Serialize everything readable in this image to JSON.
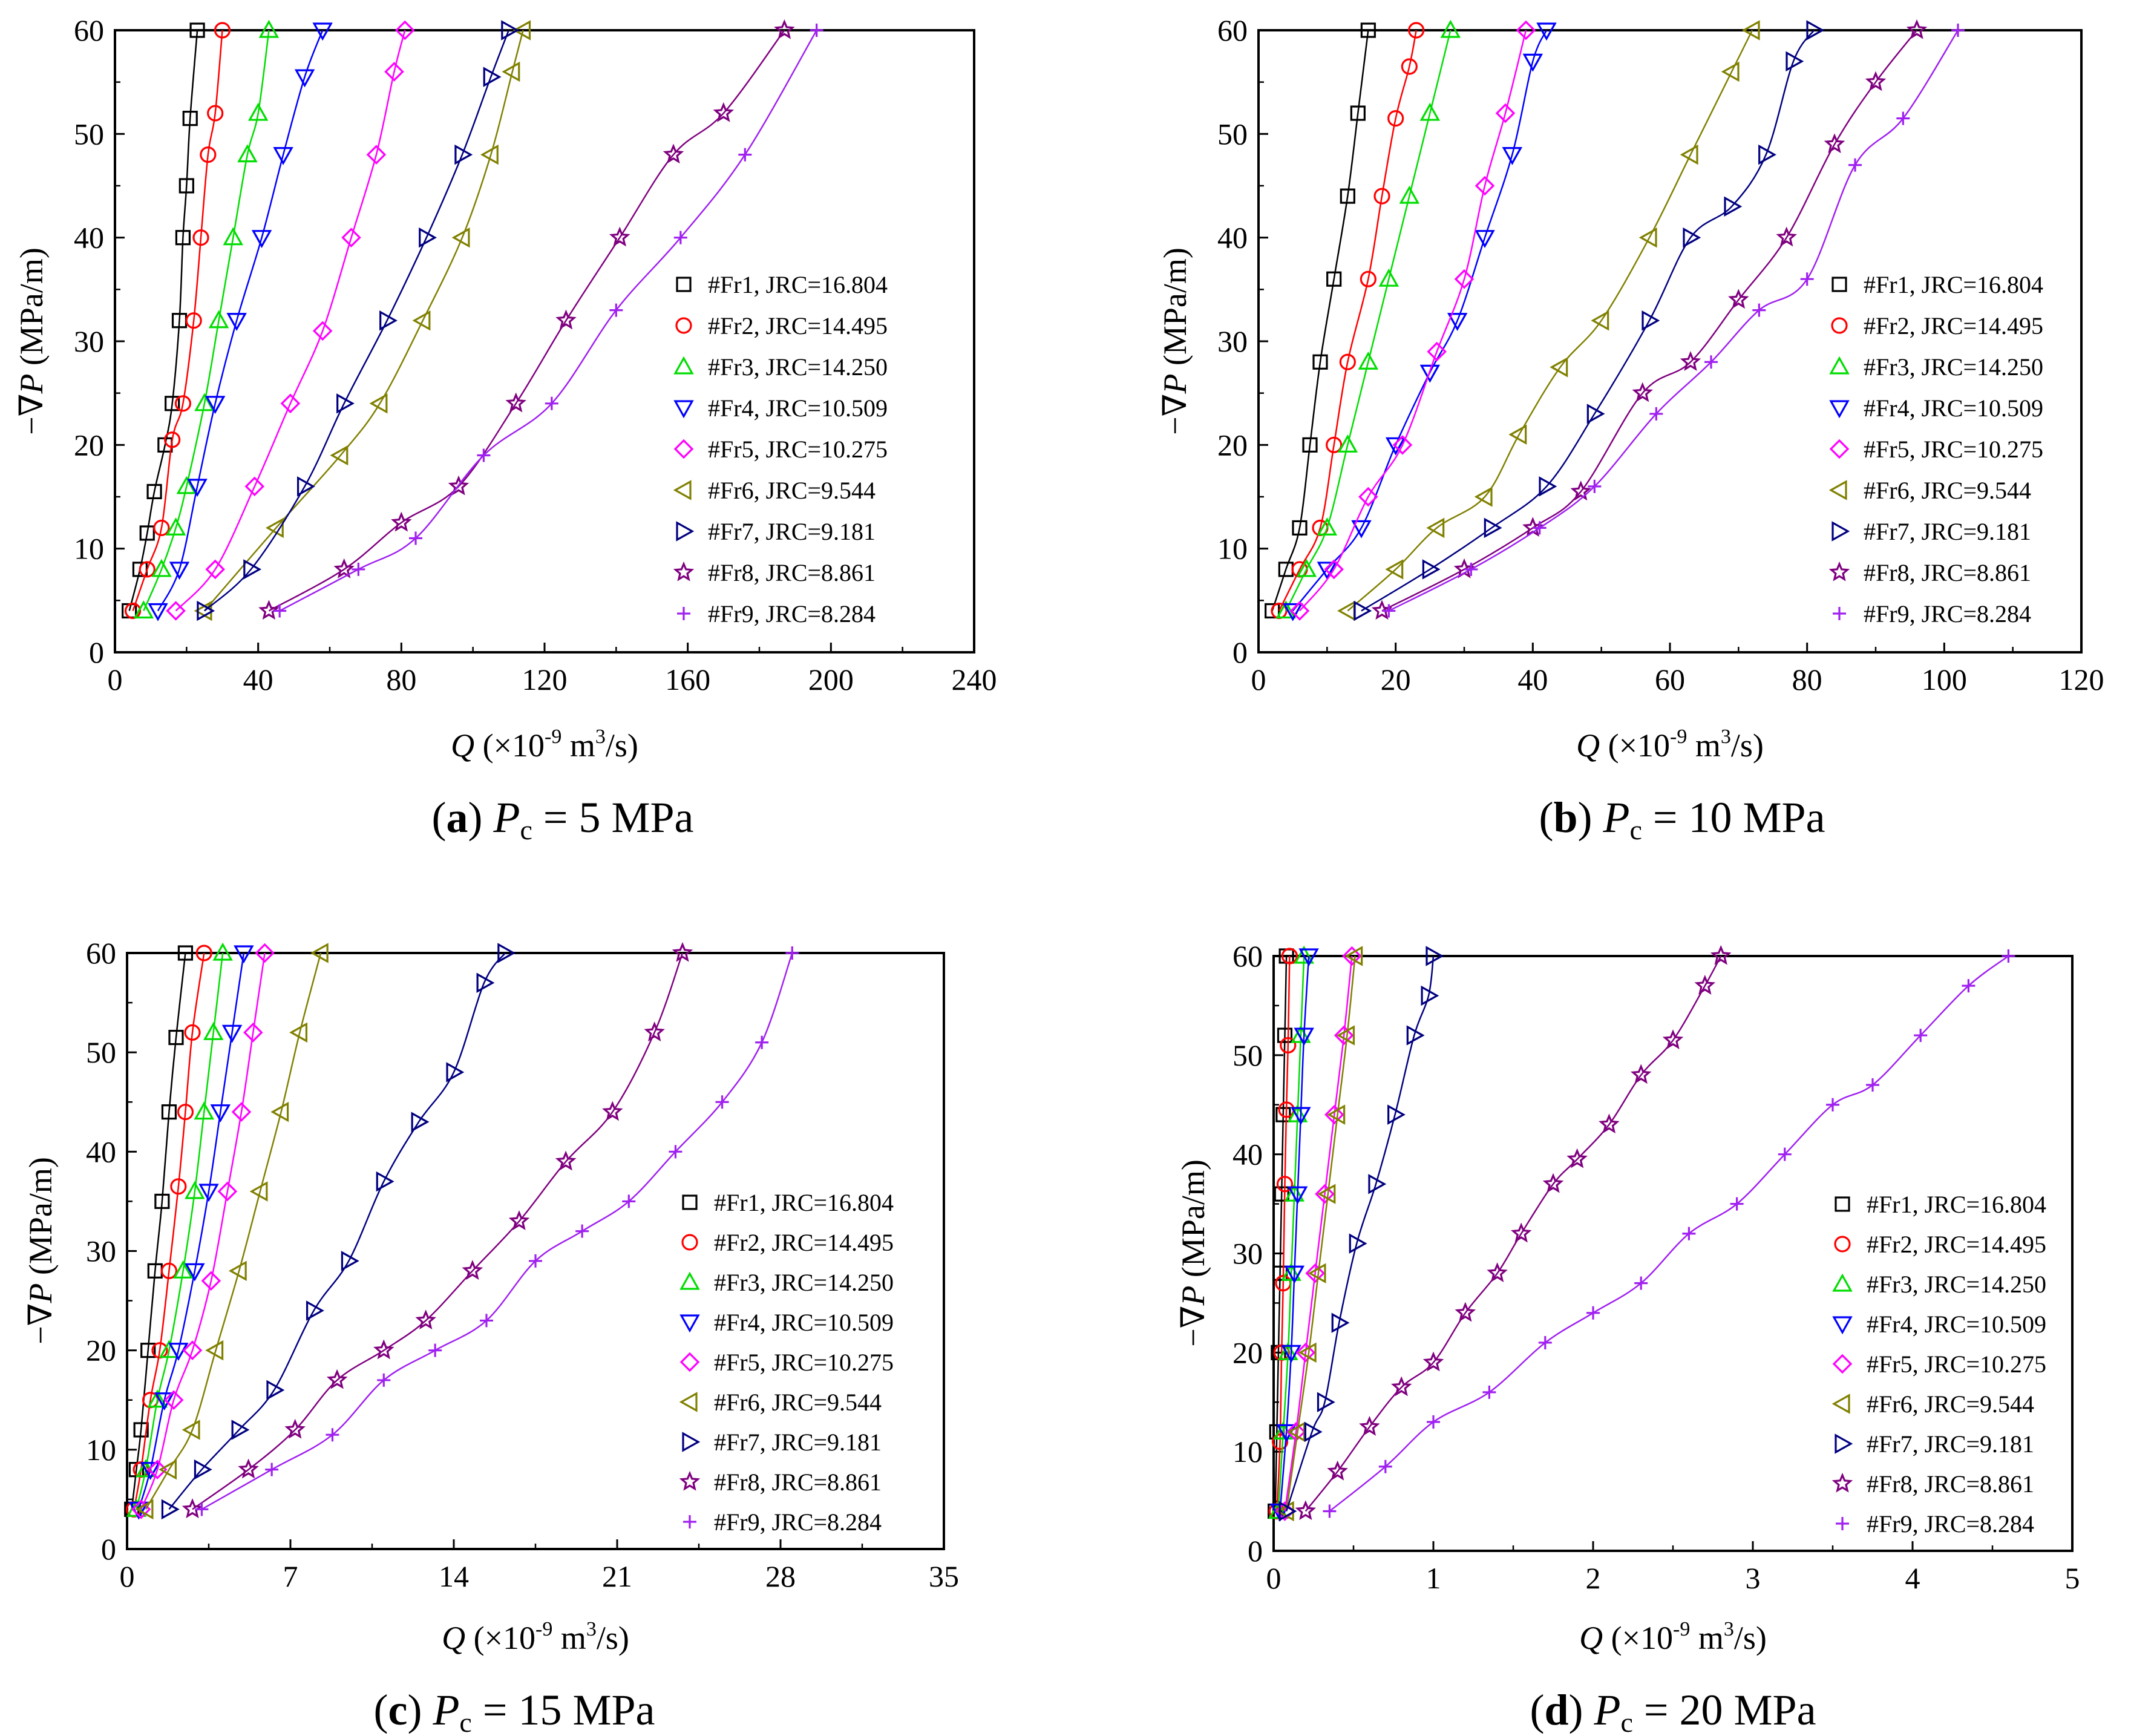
{
  "figure": {
    "series_labels": [
      "#Fr1, JRC=16.804",
      "#Fr2, JRC=14.495",
      "#Fr3, JRC=14.250",
      "#Fr4, JRC=10.509",
      "#Fr5, JRC=10.275",
      "#Fr6, JRC=9.544",
      "#Fr7, JRC=9.181",
      "#Fr8, JRC=8.861",
      "#Fr9, JRC=8.284"
    ],
    "series_colors": [
      "#000000",
      "#ff0000",
      "#00dd00",
      "#0000ff",
      "#ff00ff",
      "#808000",
      "#000080",
      "#800080",
      "#a020f0"
    ],
    "series_markers": [
      "square",
      "circle",
      "triangle-up",
      "triangle-down",
      "diamond",
      "triangle-left",
      "triangle-right",
      "star",
      "plus"
    ]
  },
  "chart_data": [
    {
      "type": "line",
      "panel": "a",
      "caption_letter": "a",
      "caption_value": "5 MPa",
      "xlabel": "Q (×10-9 m3/s)",
      "ylabel": "−∇P (MPa/m)",
      "xlim": [
        0,
        240
      ],
      "ylim": [
        0,
        60
      ],
      "xticks": [
        0,
        40,
        80,
        120,
        160,
        200,
        240
      ],
      "yticks": [
        0,
        10,
        20,
        30,
        40,
        50,
        60
      ],
      "series": [
        {
          "name": "#Fr1, JRC=16.804",
          "x": [
            4,
            7,
            9,
            11,
            14,
            16,
            18,
            19,
            20,
            21,
            23
          ],
          "y": [
            4,
            8,
            11.5,
            15.5,
            20,
            24,
            32,
            40,
            45,
            51.5,
            60
          ]
        },
        {
          "name": "#Fr2, JRC=14.495",
          "x": [
            5,
            9,
            13,
            16,
            19,
            22,
            24,
            26,
            28,
            30
          ],
          "y": [
            4,
            8,
            12,
            20.5,
            24,
            32,
            40,
            48,
            52,
            60
          ]
        },
        {
          "name": "#Fr3, JRC=14.250",
          "x": [
            8,
            13,
            17,
            20,
            25,
            29,
            33,
            37,
            40,
            43
          ],
          "y": [
            4,
            8,
            12,
            16,
            24,
            32,
            40,
            48,
            52,
            60
          ]
        },
        {
          "name": "#Fr4, JRC=10.509",
          "x": [
            12,
            18,
            23,
            28,
            34,
            41,
            47,
            53,
            58
          ],
          "y": [
            4,
            8,
            16,
            24,
            32,
            40,
            48,
            55.5,
            60
          ]
        },
        {
          "name": "#Fr5, JRC=10.275",
          "x": [
            17,
            28,
            39,
            49,
            58,
            66,
            73,
            78,
            81
          ],
          "y": [
            4,
            8,
            16,
            24,
            31,
            40,
            48,
            56,
            60
          ]
        },
        {
          "name": "#Fr6, JRC=9.544",
          "x": [
            25,
            45,
            63,
            74,
            86,
            97,
            105,
            111,
            114
          ],
          "y": [
            4,
            12,
            19,
            24,
            32,
            40,
            48,
            56,
            60
          ]
        },
        {
          "name": "#Fr7, JRC=9.181",
          "x": [
            25,
            38,
            53,
            64,
            76,
            87,
            97,
            105,
            110
          ],
          "y": [
            4,
            8,
            16,
            24,
            32,
            40,
            48,
            55.5,
            60
          ]
        },
        {
          "name": "#Fr8, JRC=8.861",
          "x": [
            43,
            64,
            80,
            96,
            112,
            126,
            141,
            156,
            170,
            187
          ],
          "y": [
            4,
            8,
            12.5,
            16,
            24,
            32,
            40,
            48,
            52,
            60
          ]
        },
        {
          "name": "#Fr9, JRC=8.284",
          "x": [
            46,
            68,
            84,
            103,
            122,
            140,
            158,
            176,
            196
          ],
          "y": [
            4,
            8,
            11,
            19,
            24,
            33,
            40,
            48,
            60
          ]
        }
      ]
    },
    {
      "type": "line",
      "panel": "b",
      "caption_letter": "b",
      "caption_value": "10 MPa",
      "xlabel": "Q (×10-9 m3/s)",
      "ylabel": "−∇P (MPa/m)",
      "xlim": [
        0,
        120
      ],
      "ylim": [
        0,
        60
      ],
      "xticks": [
        0,
        20,
        40,
        60,
        80,
        100,
        120
      ],
      "yticks": [
        0,
        10,
        20,
        30,
        40,
        50,
        60
      ],
      "series": [
        {
          "name": "#Fr1, JRC=16.804",
          "x": [
            2,
            4,
            6,
            7.5,
            9,
            11,
            13,
            14.5,
            16
          ],
          "y": [
            4,
            8,
            12,
            20,
            28,
            36,
            44,
            52,
            60
          ]
        },
        {
          "name": "#Fr2, JRC=14.495",
          "x": [
            3,
            6,
            9,
            11,
            13,
            16,
            18,
            20,
            22,
            23
          ],
          "y": [
            4,
            8,
            12,
            20,
            28,
            36,
            44,
            51.5,
            56.5,
            60
          ]
        },
        {
          "name": "#Fr3, JRC=14.250",
          "x": [
            4,
            7,
            10,
            13,
            16,
            19,
            22,
            25,
            28
          ],
          "y": [
            4,
            8,
            12,
            20,
            28,
            36,
            44,
            52,
            60
          ]
        },
        {
          "name": "#Fr4, JRC=10.509",
          "x": [
            5,
            10,
            15,
            20,
            25,
            29,
            33,
            37,
            40,
            42
          ],
          "y": [
            4,
            8,
            12,
            20,
            27,
            32,
            40,
            48,
            57,
            60
          ]
        },
        {
          "name": "#Fr5, JRC=10.275",
          "x": [
            6,
            11,
            16,
            21,
            26,
            30,
            33,
            36,
            39
          ],
          "y": [
            4,
            8,
            15,
            20,
            29,
            36,
            45,
            52,
            60
          ]
        },
        {
          "name": "#Fr6, JRC=9.544",
          "x": [
            13,
            20,
            26,
            33,
            38,
            44,
            50,
            57,
            63,
            69,
            72
          ],
          "y": [
            4,
            8,
            12,
            15,
            21,
            27.5,
            32,
            40,
            48,
            56,
            60
          ]
        },
        {
          "name": "#Fr7, JRC=9.181",
          "x": [
            15,
            25,
            34,
            42,
            49,
            57,
            63,
            69,
            74,
            78,
            81
          ],
          "y": [
            4,
            8,
            12,
            16,
            23,
            32,
            40,
            43,
            48,
            57,
            60
          ]
        },
        {
          "name": "#Fr8, JRC=8.861",
          "x": [
            18,
            30,
            40,
            47,
            56,
            63,
            70,
            77,
            84,
            90,
            96
          ],
          "y": [
            4,
            8,
            12,
            15.5,
            25,
            28,
            34,
            40,
            49,
            55,
            60
          ]
        },
        {
          "name": "#Fr9, JRC=8.284",
          "x": [
            19,
            31,
            41,
            49,
            58,
            66,
            73,
            80,
            87,
            94,
            102
          ],
          "y": [
            4,
            8,
            12,
            16,
            23,
            28,
            33,
            36,
            47,
            51.5,
            60
          ]
        }
      ]
    },
    {
      "type": "line",
      "panel": "c",
      "caption_letter": "c",
      "caption_value": "15 MPa",
      "xlabel": "Q (×10-9 m3/s)",
      "ylabel": "−∇P (MPa/m)",
      "xlim": [
        0,
        35
      ],
      "ylim": [
        0,
        60
      ],
      "xticks": [
        0,
        7,
        14,
        21,
        28,
        35
      ],
      "yticks": [
        0,
        10,
        20,
        30,
        40,
        50,
        60
      ],
      "series": [
        {
          "name": "#Fr1, JRC=16.804",
          "x": [
            0.2,
            0.4,
            0.6,
            0.9,
            1.2,
            1.5,
            1.8,
            2.1,
            2.5
          ],
          "y": [
            4,
            8,
            12,
            20,
            28,
            35,
            44,
            51.5,
            60
          ]
        },
        {
          "name": "#Fr2, JRC=14.495",
          "x": [
            0.3,
            0.6,
            1.0,
            1.4,
            1.8,
            2.2,
            2.5,
            2.8,
            3.3
          ],
          "y": [
            4,
            8,
            15,
            20,
            28,
            36.5,
            44,
            52,
            60
          ]
        },
        {
          "name": "#Fr3, JRC=14.250",
          "x": [
            0.4,
            0.8,
            1.3,
            1.8,
            2.4,
            2.9,
            3.3,
            3.7,
            4.1
          ],
          "y": [
            4,
            8,
            15,
            20,
            28,
            36,
            44,
            52,
            60
          ]
        },
        {
          "name": "#Fr4, JRC=10.509",
          "x": [
            0.5,
            1.0,
            1.6,
            2.2,
            2.9,
            3.5,
            4.0,
            4.5,
            5.0
          ],
          "y": [
            4,
            8,
            15,
            20,
            28,
            36,
            44,
            52,
            60
          ]
        },
        {
          "name": "#Fr5, JRC=10.275",
          "x": [
            0.6,
            1.3,
            2.0,
            2.8,
            3.6,
            4.3,
            4.9,
            5.4,
            5.9
          ],
          "y": [
            4,
            8,
            15,
            20,
            27,
            36,
            44,
            52,
            60
          ]
        },
        {
          "name": "#Fr6, JRC=9.544",
          "x": [
            0.8,
            1.8,
            2.8,
            3.8,
            4.8,
            5.7,
            6.6,
            7.4,
            8.3
          ],
          "y": [
            4,
            8,
            12,
            20,
            28,
            36,
            44,
            52,
            60
          ]
        },
        {
          "name": "#Fr7, JRC=9.181",
          "x": [
            1.8,
            3.2,
            4.8,
            6.3,
            8.0,
            9.5,
            11.0,
            12.5,
            14.0,
            15.3,
            16.2
          ],
          "y": [
            4,
            8,
            12,
            16,
            24,
            29,
            37,
            43,
            48,
            57,
            60
          ]
        },
        {
          "name": "#Fr8, JRC=8.861",
          "x": [
            2.8,
            5.2,
            7.2,
            9.0,
            11.0,
            12.8,
            14.8,
            16.8,
            18.8,
            20.8,
            22.6,
            23.8
          ],
          "y": [
            4,
            8,
            12,
            17,
            20,
            23,
            28,
            33,
            39,
            44,
            52,
            60
          ]
        },
        {
          "name": "#Fr9, JRC=8.284",
          "x": [
            3.2,
            6.2,
            8.8,
            11.0,
            13.2,
            15.4,
            17.5,
            19.5,
            21.5,
            23.5,
            25.5,
            27.2,
            28.5
          ],
          "y": [
            4,
            8,
            11.5,
            17,
            20,
            23,
            29,
            32,
            35,
            40,
            45,
            51,
            60
          ]
        }
      ]
    },
    {
      "type": "line",
      "panel": "d",
      "caption_letter": "d",
      "caption_value": "20 MPa",
      "xlabel": "Q (×10-9 m3/s)",
      "ylabel": "−∇P (MPa/m)",
      "xlim": [
        0,
        5
      ],
      "ylim": [
        0,
        60
      ],
      "xticks": [
        0,
        1,
        2,
        3,
        4,
        5
      ],
      "yticks": [
        0,
        10,
        20,
        30,
        40,
        50,
        60
      ],
      "series": [
        {
          "name": "#Fr1, JRC=16.804",
          "x": [
            0.01,
            0.02,
            0.03,
            0.04,
            0.05,
            0.06,
            0.07,
            0.08
          ],
          "y": [
            4,
            12,
            20,
            28,
            36,
            44,
            52,
            60
          ]
        },
        {
          "name": "#Fr2, JRC=14.495",
          "x": [
            0.02,
            0.04,
            0.05,
            0.06,
            0.07,
            0.08,
            0.09,
            0.1
          ],
          "y": [
            4,
            11,
            20,
            27,
            37,
            44.5,
            51,
            60
          ]
        },
        {
          "name": "#Fr3, JRC=14.250",
          "x": [
            0.03,
            0.06,
            0.09,
            0.11,
            0.13,
            0.15,
            0.17,
            0.19
          ],
          "y": [
            4,
            12,
            20,
            28,
            36,
            44,
            52,
            60
          ]
        },
        {
          "name": "#Fr4, JRC=10.509",
          "x": [
            0.04,
            0.08,
            0.11,
            0.13,
            0.15,
            0.17,
            0.19,
            0.22
          ],
          "y": [
            4,
            12,
            20,
            28,
            36,
            44,
            52,
            60
          ]
        },
        {
          "name": "#Fr5, JRC=10.275",
          "x": [
            0.07,
            0.14,
            0.2,
            0.26,
            0.32,
            0.38,
            0.44,
            0.49
          ],
          "y": [
            4,
            12,
            20,
            28,
            36,
            44,
            52,
            60
          ]
        },
        {
          "name": "#Fr6, JRC=9.544",
          "x": [
            0.08,
            0.15,
            0.22,
            0.28,
            0.34,
            0.4,
            0.46,
            0.51
          ],
          "y": [
            4,
            12,
            20,
            28,
            36,
            44,
            52,
            60
          ]
        },
        {
          "name": "#Fr7, JRC=9.181",
          "x": [
            0.08,
            0.24,
            0.32,
            0.41,
            0.52,
            0.64,
            0.76,
            0.88,
            0.97,
            1.0
          ],
          "y": [
            4,
            12,
            15,
            23,
            31,
            37,
            44,
            52,
            56,
            60
          ]
        },
        {
          "name": "#Fr8, JRC=8.861",
          "x": [
            0.2,
            0.4,
            0.6,
            0.8,
            1.0,
            1.2,
            1.4,
            1.55,
            1.75,
            1.9,
            2.1,
            2.3,
            2.5,
            2.7,
            2.8
          ],
          "y": [
            4,
            8,
            12.5,
            16.5,
            19,
            24,
            28,
            32,
            37,
            39.5,
            43,
            48,
            51.5,
            57,
            60
          ]
        },
        {
          "name": "#Fr9, JRC=8.284",
          "x": [
            0.35,
            0.7,
            1.0,
            1.35,
            1.7,
            2.0,
            2.3,
            2.6,
            2.9,
            3.2,
            3.5,
            3.75,
            4.05,
            4.35,
            4.6
          ],
          "y": [
            4,
            8.5,
            13,
            16,
            21,
            24,
            27,
            32,
            35,
            40,
            45,
            47,
            52,
            57,
            60
          ]
        }
      ]
    }
  ]
}
